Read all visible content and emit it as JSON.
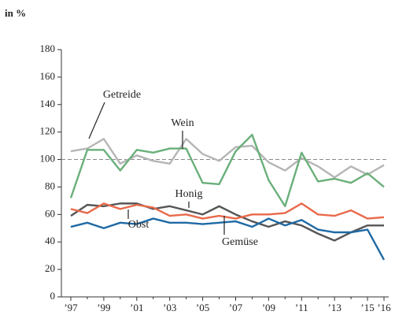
{
  "chart_data": {
    "type": "line",
    "ylabel": "in %",
    "categories": [
      "’97",
      null,
      "’99",
      null,
      "’01",
      null,
      "’03",
      null,
      "’05",
      null,
      "’07",
      null,
      "’09",
      null,
      "’11",
      null,
      "’13",
      null,
      "’15",
      "’16"
    ],
    "series": [
      {
        "name": "Getreide",
        "color": "#b5b5b5",
        "values": [
          106,
          108,
          115,
          97,
          103,
          99,
          97,
          115,
          104,
          99,
          109,
          110,
          98,
          92,
          101,
          95,
          87,
          95,
          89,
          96
        ]
      },
      {
        "name": "Wein",
        "color": "#6aaf7a",
        "values": [
          72,
          107,
          107,
          92,
          107,
          105,
          108,
          108,
          83,
          82,
          106,
          118,
          85,
          66,
          105,
          84,
          86,
          83,
          90,
          80
        ]
      },
      {
        "name": "Honig",
        "color": "#555555",
        "values": [
          59,
          67,
          66,
          68,
          68,
          64,
          66,
          63,
          60,
          66,
          60,
          55,
          51,
          55,
          52,
          46,
          41,
          47,
          52,
          52
        ]
      },
      {
        "name": "Gemüse",
        "color": "#e8694a",
        "values": [
          64,
          61,
          68,
          64,
          67,
          65,
          59,
          60,
          57,
          59,
          57,
          60,
          60,
          61,
          68,
          60,
          59,
          63,
          57,
          58
        ]
      },
      {
        "name": "Obst",
        "color": "#1f6aa5",
        "values": [
          51,
          54,
          50,
          54,
          53,
          57,
          54,
          54,
          53,
          54,
          55,
          51,
          57,
          52,
          56,
          49,
          47,
          47,
          49,
          27
        ]
      }
    ],
    "reference_line": 100,
    "ylim": [
      0,
      180
    ],
    "yticks": [
      0,
      20,
      40,
      60,
      80,
      100,
      120,
      140,
      160,
      180
    ]
  }
}
